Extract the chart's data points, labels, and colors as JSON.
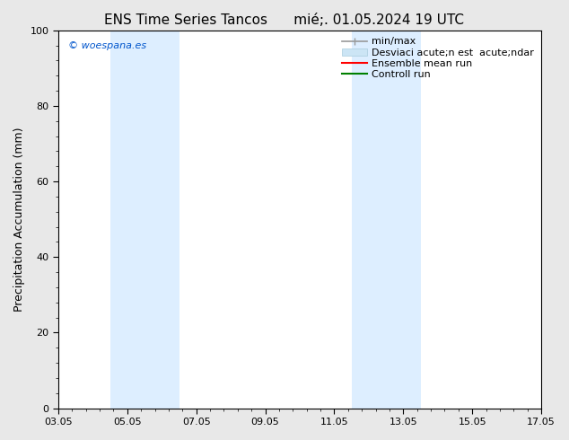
{
  "title_left": "ENS Time Series Tancos",
  "title_right": "mié;. 01.05.2024 19 UTC",
  "ylabel": "Precipitation Accumulation (mm)",
  "ylim": [
    0,
    100
  ],
  "yticks": [
    0,
    20,
    40,
    60,
    80,
    100
  ],
  "xtick_labels": [
    "03.05",
    "05.05",
    "07.05",
    "09.05",
    "11.05",
    "13.05",
    "15.05",
    "17.05"
  ],
  "xtick_positions": [
    0,
    2,
    4,
    6,
    8,
    10,
    12,
    14
  ],
  "xlim": [
    0,
    14
  ],
  "shaded_bands": [
    {
      "x_start": 1.5,
      "x_end": 3.5,
      "color": "#ddeeff"
    },
    {
      "x_start": 8.5,
      "x_end": 10.5,
      "color": "#ddeeff"
    }
  ],
  "watermark_text": "© woespana.es",
  "watermark_color": "#0055cc",
  "legend_labels": [
    "min/max",
    "Desviaci acute;n est  acute;ndar",
    "Ensemble mean run",
    "Controll run"
  ],
  "legend_line_colors": [
    "#999999",
    "#ccddee",
    "red",
    "green"
  ],
  "bg_color": "#e8e8e8",
  "plot_bg_color": "white",
  "title_fontsize": 11,
  "axis_label_fontsize": 9,
  "tick_fontsize": 8,
  "legend_fontsize": 8,
  "minor_tick_count": 4
}
